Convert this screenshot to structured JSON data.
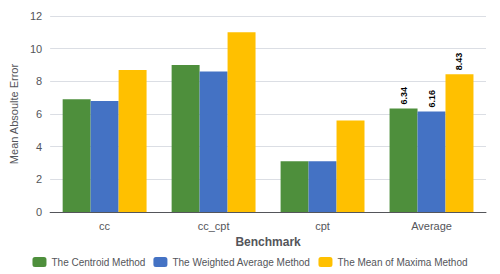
{
  "chart_data": {
    "type": "bar",
    "categories": [
      "cc",
      "cc_cpt",
      "cpt",
      "Average"
    ],
    "series": [
      {
        "name": "The Centroid Method",
        "color": "#4e8f3c",
        "values": [
          6.9,
          9.0,
          3.1,
          6.34
        ]
      },
      {
        "name": "The Weighted Average Method",
        "color": "#4472c4",
        "values": [
          6.8,
          8.6,
          3.1,
          6.16
        ]
      },
      {
        "name": "The Mean of Maxima Method",
        "color": "#ffc000",
        "values": [
          8.7,
          11.0,
          5.6,
          8.43
        ]
      }
    ],
    "x_label": "Benchmark",
    "y_label": "Mean Absoulte Error",
    "ylim": [
      0,
      12
    ],
    "yticks": [
      0,
      2,
      4,
      6,
      8,
      10,
      12
    ],
    "grid": true,
    "legend": "bottom",
    "annotations": [
      {
        "text": "6.34",
        "category": "Average",
        "series": "The Centroid Method"
      },
      {
        "text": "6.16",
        "category": "Average",
        "series": "The Weighted Average Method"
      },
      {
        "text": "8.43",
        "category": "Average",
        "series": "The Mean of Maxima Method"
      }
    ]
  }
}
